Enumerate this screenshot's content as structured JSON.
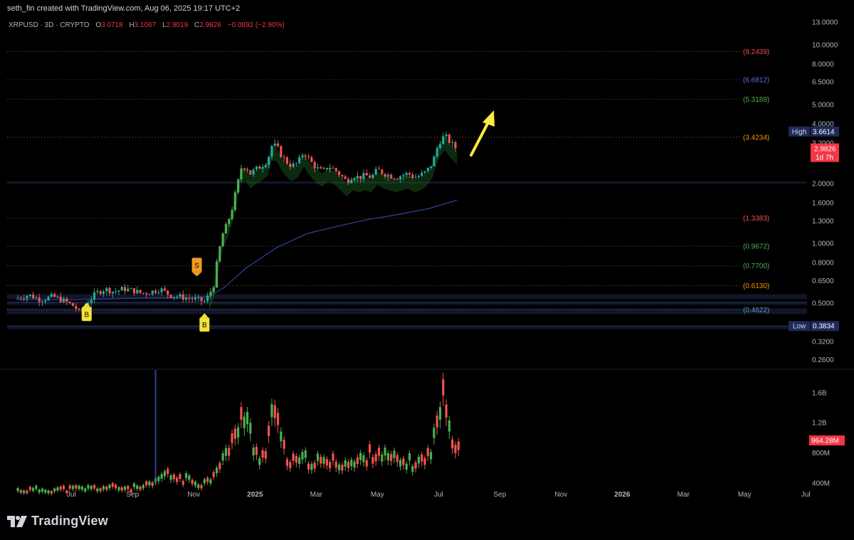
{
  "header": {
    "credit": "seth_fin created with TradingView.com, Aug 06, 2025 19:17 UTC+2",
    "symbol": "XRPUSD · 3D · CRYPTO",
    "open_label": "O",
    "open": "3.0718",
    "high_label": "H",
    "high": "3.1067",
    "low_label": "L",
    "low": "2.9019",
    "close_label": "C",
    "close": "2.9826",
    "change": "−0.0892 (−2.90%)"
  },
  "colors": {
    "background": "#000000",
    "up": "#26a69a",
    "up_bright": "#4caf50",
    "down": "#ef5350",
    "ma_line": "#2e3a8c",
    "ribbon": "#1b5e20",
    "arrow": "#ffeb3b",
    "high_box": "#1e2a5a",
    "price_box": "#f23645"
  },
  "footer": {
    "logo_text": "TradingView"
  },
  "chart_data": {
    "type": "candlestick",
    "scale": "log",
    "price_axis": {
      "ticks": [
        "13.0000",
        "10.0000",
        "8.0000",
        "6.5000",
        "5.0000",
        "4.0000",
        "3.2000",
        "2.0000",
        "1.6000",
        "1.3000",
        "1.0000",
        "0.8000",
        "0.6500",
        "0.5000",
        "0.3200",
        "0.2600"
      ],
      "tick_values": [
        13,
        10,
        8,
        6.5,
        5,
        4,
        3.2,
        2,
        1.6,
        1.3,
        1.0,
        0.8,
        0.65,
        0.5,
        0.32,
        0.26
      ],
      "ylim": [
        0.24,
        14.5
      ]
    },
    "volume_axis": {
      "ticks": [
        "1.6B",
        "1.2B",
        "800M",
        "400M"
      ],
      "tick_values": [
        1.6,
        1.2,
        0.8,
        0.4
      ],
      "ylim": [
        0.2,
        1.9
      ]
    },
    "time_axis": {
      "ticks": [
        "Jul",
        "Sep",
        "Nov",
        "2025",
        "Mar",
        "May",
        "Jul",
        "Sep",
        "Nov",
        "2026",
        "Mar",
        "May",
        "Jul"
      ],
      "bold": [
        false,
        false,
        false,
        true,
        false,
        false,
        false,
        false,
        false,
        true,
        false,
        false,
        false
      ],
      "months_since_2024_05": [
        1.8,
        3.8,
        5.8,
        7.8,
        9.8,
        11.8,
        13.8,
        15.8,
        17.8,
        19.8,
        21.8,
        23.8,
        25.8
      ]
    },
    "fib_levels": [
      {
        "label": "(9.2439)",
        "value": 9.2439,
        "color": "#ef5350"
      },
      {
        "label": "(6.6812)",
        "value": 6.6812,
        "color": "#5b6ee1"
      },
      {
        "label": "(5.3188)",
        "value": 5.3188,
        "color": "#4caf50"
      },
      {
        "label": "(3.4234)",
        "value": 3.4234,
        "color": "#ff9800"
      },
      {
        "label": "(1.3383)",
        "value": 1.3383,
        "color": "#ef5350"
      },
      {
        "label": "(0.9672)",
        "value": 0.9672,
        "color": "#4caf50"
      },
      {
        "label": "(0.7700)",
        "value": 0.77,
        "color": "#4caf50"
      },
      {
        "label": "(0.6130)",
        "value": 0.613,
        "color": "#ff9800"
      },
      {
        "label": "(0.4622)",
        "value": 0.4622,
        "color": "#5b9bd5"
      }
    ],
    "high_marker": {
      "label": "High",
      "value": "3.6614",
      "price": 3.6614
    },
    "low_marker": {
      "label": "Low",
      "value": "0.3834",
      "price": 0.3834
    },
    "last_price": {
      "value": "2.9826",
      "countdown": "1d 7h",
      "price": 2.9826
    },
    "last_volume": {
      "value": "964.28M",
      "volume": 0.96428
    },
    "signals": [
      {
        "label": "B",
        "month": 2.3,
        "price": 0.52,
        "kind": "buy"
      },
      {
        "label": "S",
        "month": 5.9,
        "price": 0.66,
        "kind": "sell"
      },
      {
        "label": "B",
        "month": 6.15,
        "price": 0.46,
        "kind": "buy"
      }
    ],
    "price_path": [
      [
        0.0,
        0.53
      ],
      [
        0.4,
        0.55
      ],
      [
        0.8,
        0.52
      ],
      [
        1.2,
        0.54
      ],
      [
        1.6,
        0.51
      ],
      [
        1.9,
        0.48
      ],
      [
        2.1,
        0.44
      ],
      [
        2.3,
        0.5
      ],
      [
        2.6,
        0.56
      ],
      [
        2.9,
        0.59
      ],
      [
        3.2,
        0.57
      ],
      [
        3.5,
        0.59
      ],
      [
        3.8,
        0.58
      ],
      [
        4.1,
        0.56
      ],
      [
        4.4,
        0.57
      ],
      [
        4.7,
        0.59
      ],
      [
        5.0,
        0.55
      ],
      [
        5.3,
        0.54
      ],
      [
        5.6,
        0.53
      ],
      [
        5.9,
        0.52
      ],
      [
        6.15,
        0.51
      ],
      [
        6.3,
        0.55
      ],
      [
        6.45,
        0.62
      ],
      [
        6.6,
        0.88
      ],
      [
        6.75,
        1.12
      ],
      [
        6.9,
        1.26
      ],
      [
        7.05,
        1.5
      ],
      [
        7.2,
        1.9
      ],
      [
        7.35,
        2.4
      ],
      [
        7.5,
        2.45
      ],
      [
        7.65,
        2.25
      ],
      [
        7.8,
        2.35
      ],
      [
        8.0,
        2.45
      ],
      [
        8.2,
        2.6
      ],
      [
        8.35,
        3.1
      ],
      [
        8.5,
        3.1
      ],
      [
        8.65,
        2.8
      ],
      [
        8.8,
        2.6
      ],
      [
        9.0,
        2.45
      ],
      [
        9.2,
        2.55
      ],
      [
        9.4,
        2.9
      ],
      [
        9.6,
        2.6
      ],
      [
        9.8,
        2.4
      ],
      [
        10.0,
        2.3
      ],
      [
        10.2,
        2.45
      ],
      [
        10.4,
        2.35
      ],
      [
        10.6,
        2.2
      ],
      [
        10.8,
        2.05
      ],
      [
        11.0,
        2.2
      ],
      [
        11.2,
        2.15
      ],
      [
        11.4,
        2.2
      ],
      [
        11.6,
        2.15
      ],
      [
        11.8,
        2.35
      ],
      [
        12.0,
        2.25
      ],
      [
        12.2,
        2.2
      ],
      [
        12.4,
        2.15
      ],
      [
        12.6,
        2.2
      ],
      [
        12.8,
        2.25
      ],
      [
        13.0,
        2.15
      ],
      [
        13.2,
        2.2
      ],
      [
        13.4,
        2.3
      ],
      [
        13.6,
        2.55
      ],
      [
        13.8,
        3.2
      ],
      [
        14.0,
        3.5
      ],
      [
        14.2,
        3.2
      ],
      [
        14.4,
        2.98
      ]
    ],
    "ma_path": [
      [
        0.0,
        0.52
      ],
      [
        2.0,
        0.52
      ],
      [
        4.0,
        0.53
      ],
      [
        5.5,
        0.53
      ],
      [
        6.3,
        0.54
      ],
      [
        6.8,
        0.6
      ],
      [
        7.5,
        0.75
      ],
      [
        8.5,
        0.95
      ],
      [
        9.5,
        1.12
      ],
      [
        10.5,
        1.22
      ],
      [
        11.5,
        1.32
      ],
      [
        12.5,
        1.4
      ],
      [
        13.5,
        1.5
      ],
      [
        14.4,
        1.65
      ]
    ],
    "volume_path": [
      [
        0.0,
        0.32
      ],
      [
        1.0,
        0.33
      ],
      [
        2.0,
        0.34
      ],
      [
        3.0,
        0.36
      ],
      [
        4.0,
        0.35
      ],
      [
        4.5,
        0.4
      ],
      [
        4.8,
        0.55
      ],
      [
        5.2,
        0.5
      ],
      [
        5.5,
        0.48
      ],
      [
        6.0,
        0.42
      ],
      [
        6.3,
        0.45
      ],
      [
        6.6,
        0.7
      ],
      [
        6.9,
        0.85
      ],
      [
        7.1,
        1.0
      ],
      [
        7.35,
        1.4
      ],
      [
        7.6,
        1.2
      ],
      [
        7.8,
        0.85
      ],
      [
        8.0,
        0.8
      ],
      [
        8.2,
        0.95
      ],
      [
        8.4,
        1.6
      ],
      [
        8.55,
        1.2
      ],
      [
        8.8,
        0.8
      ],
      [
        9.0,
        0.7
      ],
      [
        9.5,
        0.75
      ],
      [
        10.0,
        0.7
      ],
      [
        10.5,
        0.72
      ],
      [
        11.0,
        0.68
      ],
      [
        11.5,
        0.8
      ],
      [
        11.8,
        0.9
      ],
      [
        12.0,
        0.8
      ],
      [
        12.5,
        0.72
      ],
      [
        13.0,
        0.7
      ],
      [
        13.4,
        0.75
      ],
      [
        13.7,
        1.1
      ],
      [
        13.9,
        1.7
      ],
      [
        14.1,
        1.3
      ],
      [
        14.3,
        1.05
      ],
      [
        14.5,
        0.96
      ]
    ]
  }
}
